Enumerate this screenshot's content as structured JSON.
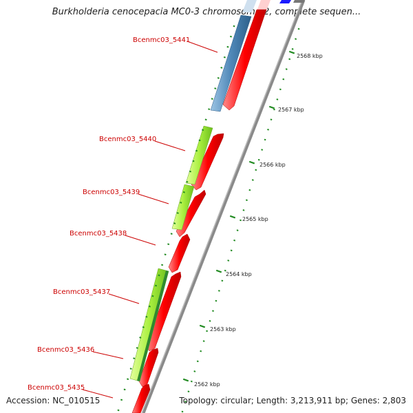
{
  "title": "Burkholderia cenocepacia MC0-3 chromosome 2, complete sequen...",
  "accession_text": "Accession: NC_010515",
  "stats_text": "Topology: circular; Length: 3,213,911 bp; Genes: 2,803",
  "colors": {
    "forward_gene": "#ff0000",
    "reverse_gene": "#aaf040",
    "reverse_gene_dark": "#2f8a2f",
    "steel_gene": "#4f88b8",
    "backbone": "#808080",
    "label": "#cc0000",
    "tick": "#228b22"
  },
  "gene_labels": [
    "Bcenmc03_5441",
    "Bcenmc03_5440",
    "Bcenmc03_5439",
    "Bcenmc03_5438",
    "Bcenmc03_5437",
    "Bcenmc03_5436",
    "Bcenmc03_5435"
  ],
  "scale_labels": [
    "2568 kbp",
    "2567 kbp",
    "2566 kbp",
    "2565 kbp",
    "2564 kbp",
    "2563 kbp",
    "2562 kbp"
  ]
}
